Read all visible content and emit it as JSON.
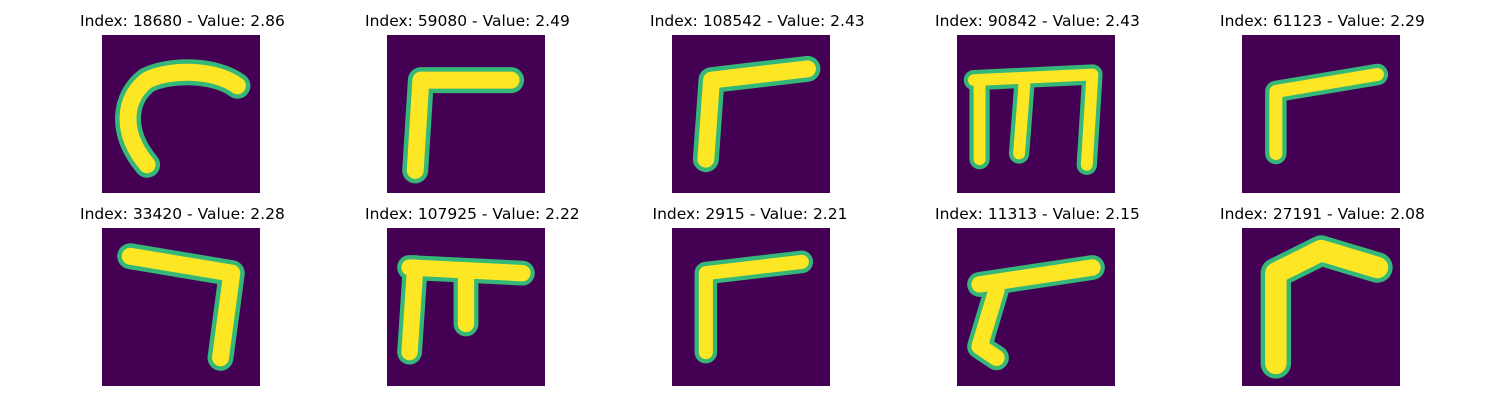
{
  "figure": {
    "background": "#ffffff",
    "colormap": "viridis",
    "image_background": "#440154",
    "stroke_color": "#fde725",
    "edge_color": "#35b779"
  },
  "panels": [
    {
      "title": "Index: 18680 - Value: 2.86",
      "index": 18680,
      "value": 2.86,
      "glyph": "c-curve"
    },
    {
      "title": "Index: 59080 - Value: 2.49",
      "index": 59080,
      "value": 2.49,
      "glyph": "angle"
    },
    {
      "title": "Index: 108542 - Value: 2.43",
      "index": 108542,
      "value": 2.43,
      "glyph": "angle-wide"
    },
    {
      "title": "Index: 90842 - Value: 2.43",
      "index": 90842,
      "value": 2.43,
      "glyph": "three-leg"
    },
    {
      "title": "Index: 61123 - Value: 2.29",
      "index": 61123,
      "value": 2.29,
      "glyph": "angle-thin"
    },
    {
      "title": "Index: 33420 - Value: 2.28",
      "index": 33420,
      "value": 2.28,
      "glyph": "seven"
    },
    {
      "title": "Index: 107925 - Value: 2.22",
      "index": 107925,
      "value": 2.22,
      "glyph": "two-leg"
    },
    {
      "title": "Index: 2915 - Value: 2.21",
      "index": 2915,
      "value": 2.21,
      "glyph": "angle-thin2"
    },
    {
      "title": "Index: 11313 - Value: 2.15",
      "index": 11313,
      "value": 2.15,
      "glyph": "slant"
    },
    {
      "title": "Index: 27191 - Value: 2.08",
      "index": 27191,
      "value": 2.08,
      "glyph": "thick-angle"
    }
  ]
}
